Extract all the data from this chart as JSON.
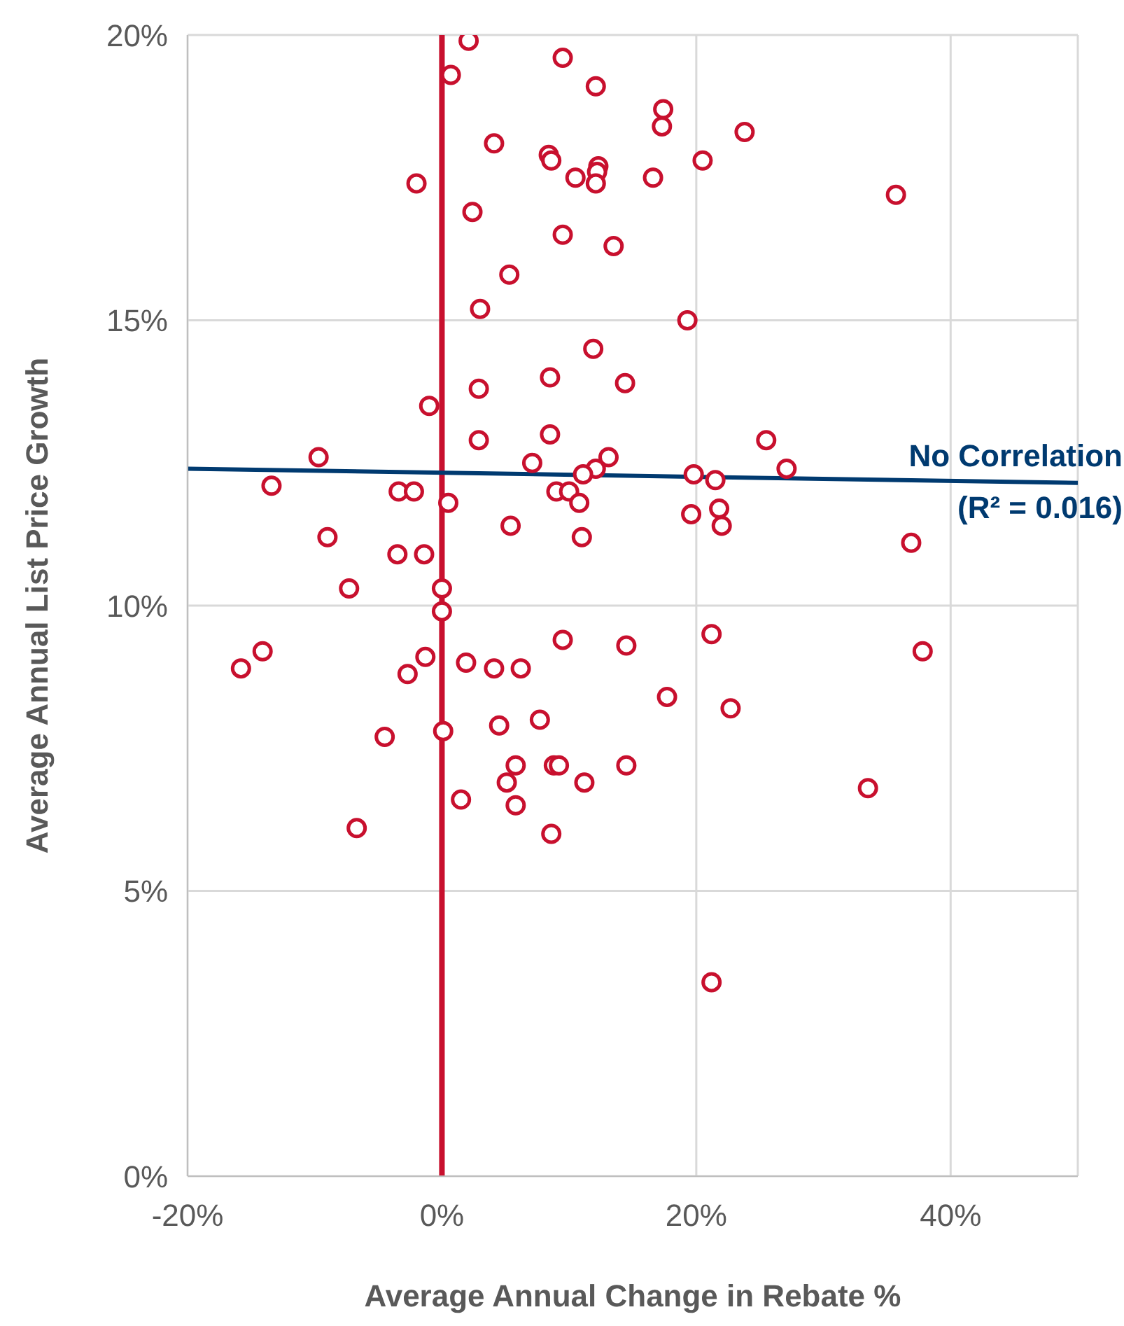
{
  "chart_data": {
    "type": "scatter",
    "xlabel": "Average Annual Change in Rebate %",
    "ylabel": "Average Annual List Price Growth",
    "xlim": [
      -20,
      50
    ],
    "xticks": [
      {
        "value": -20,
        "label": "-20%"
      },
      {
        "value": 0,
        "label": "0%"
      },
      {
        "value": 20,
        "label": "20%"
      },
      {
        "value": 40,
        "label": "40%"
      }
    ],
    "ylim": [
      0,
      20
    ],
    "yticks": [
      {
        "value": 0,
        "label": "0%"
      },
      {
        "value": 5,
        "label": "5%"
      },
      {
        "value": 10,
        "label": "10%"
      },
      {
        "value": 15,
        "label": "15%"
      },
      {
        "value": 20,
        "label": "20%"
      }
    ],
    "grid": true,
    "marker": "circle",
    "ref_lines": [
      {
        "axis": "x",
        "value": 0,
        "color": "#c8102e"
      }
    ],
    "annotations": [
      {
        "text": "No Correlation",
        "x": 50,
        "y": 12.15
      },
      {
        "text": "(R² = 0.016)",
        "x": 50,
        "y": 12.15
      }
    ],
    "series": [
      {
        "color": "#c8102e",
        "x": [
          2.1,
          0.7,
          9.5,
          12.1,
          17.4,
          17.3,
          23.8,
          4.1,
          8.4,
          8.6,
          12.3,
          12.2,
          12.1,
          20.5,
          10.5,
          16.6,
          -2.0,
          35.7,
          2.4,
          9.5,
          13.5,
          5.3,
          3.0,
          19.3,
          11.9,
          8.5,
          14.4,
          2.9,
          -1.0,
          8.5,
          2.9,
          25.5,
          -9.7,
          13.1,
          7.1,
          12.1,
          11.1,
          27.1,
          19.8,
          21.5,
          -13.4,
          -3.4,
          -2.2,
          9.0,
          10.0,
          10.8,
          0.5,
          21.8,
          19.6,
          5.4,
          22.0,
          -9.0,
          11.0,
          36.9,
          -3.5,
          -1.4,
          -7.3,
          0.0,
          0.0,
          21.2,
          9.5,
          14.5,
          37.8,
          -14.1,
          -15.8,
          -1.3,
          1.9,
          4.1,
          6.2,
          -2.7,
          17.7,
          22.7,
          7.7,
          4.5,
          0.1,
          -4.5,
          11.2,
          14.5,
          5.8,
          8.8,
          9.2,
          5.1,
          33.5,
          1.5,
          5.8,
          -6.7,
          8.6,
          21.2
        ],
        "values": [
          19.9,
          19.3,
          19.6,
          19.1,
          18.7,
          18.4,
          18.3,
          18.1,
          17.9,
          17.8,
          17.7,
          17.6,
          17.4,
          17.8,
          17.5,
          17.5,
          17.4,
          17.2,
          16.9,
          16.5,
          16.3,
          15.8,
          15.2,
          15.0,
          14.5,
          14.0,
          13.9,
          13.8,
          13.5,
          13.0,
          12.9,
          12.9,
          12.6,
          12.6,
          12.5,
          12.4,
          12.3,
          12.4,
          12.3,
          12.2,
          12.1,
          12.0,
          12.0,
          12.0,
          12.0,
          11.8,
          11.8,
          11.7,
          11.6,
          11.4,
          11.4,
          11.2,
          11.2,
          11.1,
          10.9,
          10.9,
          10.3,
          10.3,
          9.9,
          9.5,
          9.4,
          9.3,
          9.2,
          9.2,
          8.9,
          9.1,
          9.0,
          8.9,
          8.9,
          8.8,
          8.4,
          8.2,
          8.0,
          7.9,
          7.8,
          7.7,
          6.9,
          7.2,
          7.2,
          7.2,
          7.2,
          6.9,
          6.8,
          6.6,
          6.5,
          6.1,
          6.0,
          3.4
        ]
      },
      {
        "type": "line",
        "marker": "none",
        "color": "#003a70",
        "x": [
          -20,
          50
        ],
        "values": [
          12.4,
          12.15
        ]
      }
    ]
  }
}
